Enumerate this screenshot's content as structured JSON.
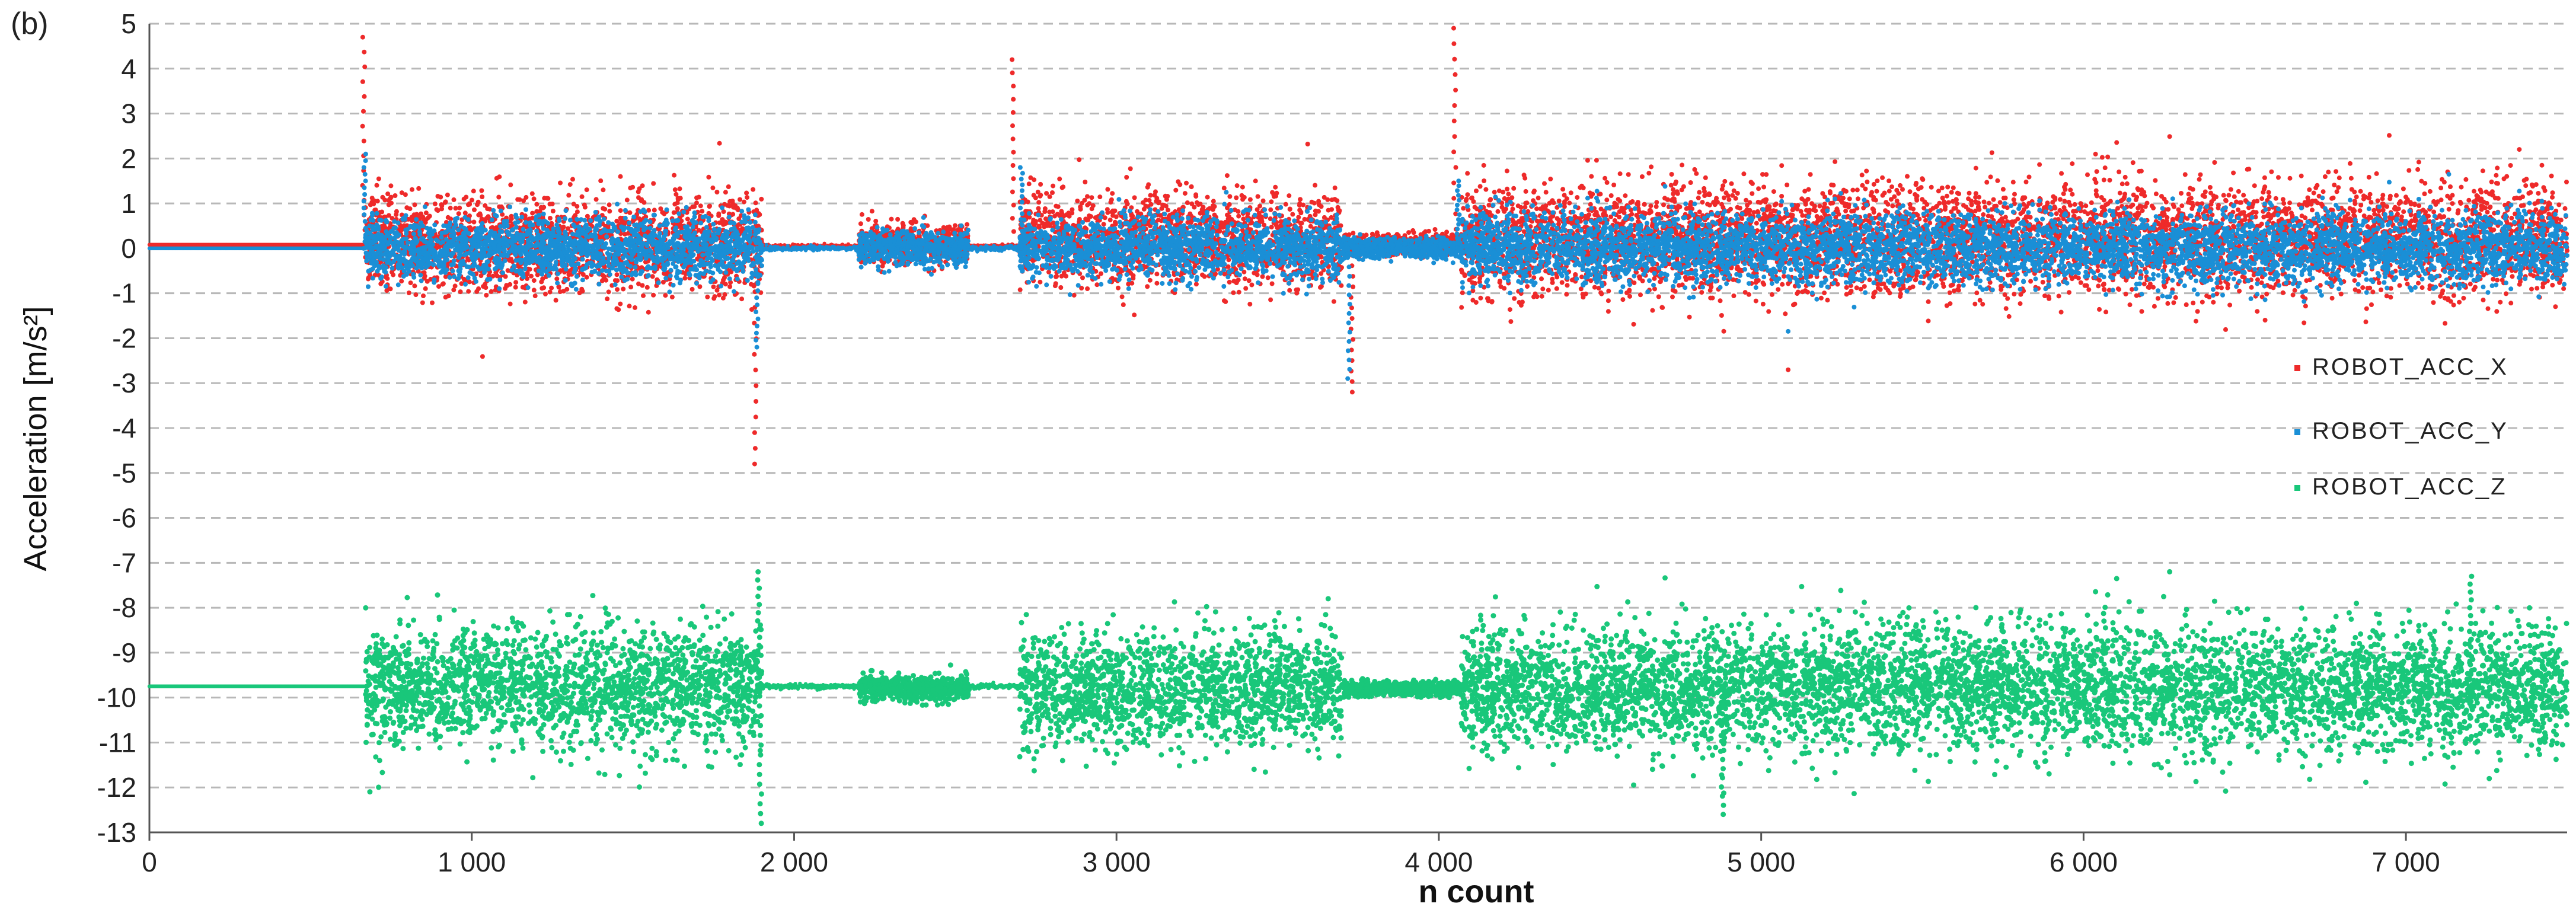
{
  "panel_label": "(b)",
  "chart_data": {
    "type": "scatter",
    "title": "",
    "xlabel": "n count",
    "ylabel": "Acceleration [m/s²]",
    "xlim": [
      0,
      7500
    ],
    "ylim": [
      -13,
      5
    ],
    "grid": "horizontal dashed",
    "legend_position": "right",
    "x_ticks": [
      0,
      1000,
      2000,
      3000,
      4000,
      5000,
      6000,
      7000
    ],
    "x_tick_labels": [
      "0",
      "1 000",
      "2 000",
      "3 000",
      "4 000",
      "5 000",
      "6 000",
      "7 000"
    ],
    "y_ticks": [
      5,
      4,
      3,
      2,
      1,
      0,
      -1,
      -2,
      -3,
      -4,
      -5,
      -6,
      -7,
      -8,
      -9,
      -10,
      -11,
      -12,
      -13
    ],
    "y_tick_labels": [
      "5",
      "4",
      "3",
      "2",
      "1",
      "0",
      "-1",
      "-2",
      "-3",
      "-4",
      "-5",
      "-6",
      "-7",
      "-8",
      "-9",
      "-10",
      "-11",
      "-12",
      "-13"
    ],
    "series": [
      {
        "name": "ROBOT_ACC_X",
        "color": "#ee2a2a",
        "segments": [
          {
            "x_start": 0,
            "x_end": 670,
            "mean": 0.08,
            "spread": 0.0
          },
          {
            "x_start": 670,
            "x_end": 1900,
            "mean": 0.1,
            "spread": 0.95
          },
          {
            "x_start": 1900,
            "x_end": 2200,
            "mean": 0.05,
            "spread": 0.02
          },
          {
            "x_start": 2200,
            "x_end": 2540,
            "mean": 0.1,
            "spread": 0.4
          },
          {
            "x_start": 2540,
            "x_end": 2700,
            "mean": 0.05,
            "spread": 0.02
          },
          {
            "x_start": 2700,
            "x_end": 3700,
            "mean": 0.2,
            "spread": 0.9
          },
          {
            "x_start": 3700,
            "x_end": 4070,
            "mean": 0.1,
            "spread": 0.2
          },
          {
            "x_start": 4070,
            "x_end": 7500,
            "mean": 0.2,
            "spread": 1.1
          }
        ],
        "spikes": [
          {
            "x": 665,
            "y": 4.7
          },
          {
            "x": 1880,
            "y": -4.8
          },
          {
            "x": 2680,
            "y": 4.2
          },
          {
            "x": 3730,
            "y": -3.2
          },
          {
            "x": 4050,
            "y": 4.9
          }
        ]
      },
      {
        "name": "ROBOT_ACC_Y",
        "color": "#1a8fd6",
        "segments": [
          {
            "x_start": 0,
            "x_end": 670,
            "mean": 0.0,
            "spread": 0.0
          },
          {
            "x_start": 670,
            "x_end": 1900,
            "mean": 0.0,
            "spread": 0.6
          },
          {
            "x_start": 1900,
            "x_end": 2200,
            "mean": 0.0,
            "spread": 0.03
          },
          {
            "x_start": 2200,
            "x_end": 2540,
            "mean": 0.0,
            "spread": 0.35
          },
          {
            "x_start": 2540,
            "x_end": 2700,
            "mean": 0.0,
            "spread": 0.03
          },
          {
            "x_start": 2700,
            "x_end": 3700,
            "mean": 0.0,
            "spread": 0.6
          },
          {
            "x_start": 3700,
            "x_end": 4070,
            "mean": 0.0,
            "spread": 0.2
          },
          {
            "x_start": 4070,
            "x_end": 7500,
            "mean": 0.0,
            "spread": 0.7
          }
        ],
        "spikes": [
          {
            "x": 668,
            "y": 2.1
          },
          {
            "x": 1885,
            "y": -2.2
          },
          {
            "x": 2705,
            "y": 1.8
          },
          {
            "x": 3720,
            "y": -2.9
          },
          {
            "x": 4060,
            "y": 1.5
          }
        ]
      },
      {
        "name": "ROBOT_ACC_Z",
        "color": "#19c77a",
        "segments": [
          {
            "x_start": 0,
            "x_end": 670,
            "mean": -9.75,
            "spread": 0.0
          },
          {
            "x_start": 670,
            "x_end": 1900,
            "mean": -9.8,
            "spread": 1.2
          },
          {
            "x_start": 1900,
            "x_end": 2200,
            "mean": -9.75,
            "spread": 0.03
          },
          {
            "x_start": 2200,
            "x_end": 2540,
            "mean": -9.8,
            "spread": 0.25
          },
          {
            "x_start": 2540,
            "x_end": 2700,
            "mean": -9.75,
            "spread": 0.03
          },
          {
            "x_start": 2700,
            "x_end": 3700,
            "mean": -9.8,
            "spread": 1.1
          },
          {
            "x_start": 3700,
            "x_end": 4070,
            "mean": -9.8,
            "spread": 0.15
          },
          {
            "x_start": 4070,
            "x_end": 7500,
            "mean": -9.8,
            "spread": 1.25
          }
        ],
        "spikes": [
          {
            "x": 1890,
            "y": -7.2
          },
          {
            "x": 1895,
            "y": -12.8
          },
          {
            "x": 4880,
            "y": -12.6
          },
          {
            "x": 7200,
            "y": -7.3
          }
        ]
      }
    ]
  }
}
